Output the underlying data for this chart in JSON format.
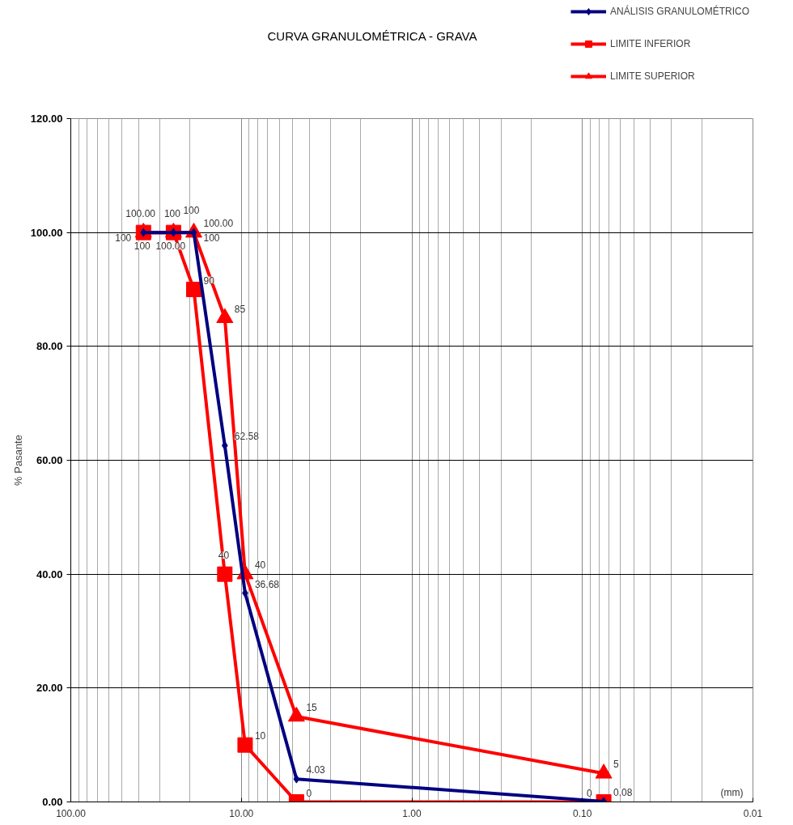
{
  "chart_data": {
    "type": "line",
    "title": "CURVA GRANULOMÉTRICA - GRAVA",
    "ylabel": "% Pasante",
    "x": [
      37.5,
      25,
      19,
      12.5,
      9.5,
      4.75,
      0.075
    ],
    "series": [
      {
        "name": "ANÁLISIS GRANULOMÉTRICO",
        "color": "#000080",
        "marker": "diamond",
        "values": [
          100,
          100,
          100,
          62.58,
          36.68,
          4.03,
          0.08
        ],
        "value_labels": [
          "100.00",
          "100.00",
          "100.00",
          "62.58",
          "36.68",
          "4.03",
          "0.08"
        ]
      },
      {
        "name": "LIMITE INFERIOR",
        "color": "#ff0000",
        "marker": "square",
        "values": [
          100,
          100,
          90,
          40,
          10,
          0,
          0
        ],
        "value_labels": [
          "100",
          "100",
          "90",
          "40",
          "10",
          "0",
          "0"
        ]
      },
      {
        "name": "LIMITE SUPERIOR",
        "color": "#ff0000",
        "marker": "triangle",
        "values": [
          100,
          100,
          100,
          85,
          40,
          15,
          5
        ],
        "value_labels": [
          "100",
          "100",
          "100",
          "85",
          "40",
          "15",
          "5"
        ]
      }
    ],
    "log": "x",
    "xlim": [
      100,
      0.01
    ],
    "xticks": [
      {
        "value": 100,
        "label": "100.00"
      },
      {
        "value": 10,
        "label": "10.00"
      },
      {
        "value": 1,
        "label": "1.00"
      },
      {
        "value": 0.1,
        "label": "0.10"
      },
      {
        "value": 0.01,
        "label": "0.01"
      }
    ],
    "ylim": [
      0,
      120
    ],
    "yticks": [
      {
        "value": 0,
        "label": "0.00"
      },
      {
        "value": 20,
        "label": "20.00"
      },
      {
        "value": 40,
        "label": "40.00"
      },
      {
        "value": 60,
        "label": "60.00"
      },
      {
        "value": 80,
        "label": "80.00"
      },
      {
        "value": 100,
        "label": "100.00"
      },
      {
        "value": 120,
        "label": "120.00"
      }
    ],
    "grid": true,
    "legend": "top right",
    "line_style": "solid",
    "annotations": [
      "(mm)"
    ]
  }
}
